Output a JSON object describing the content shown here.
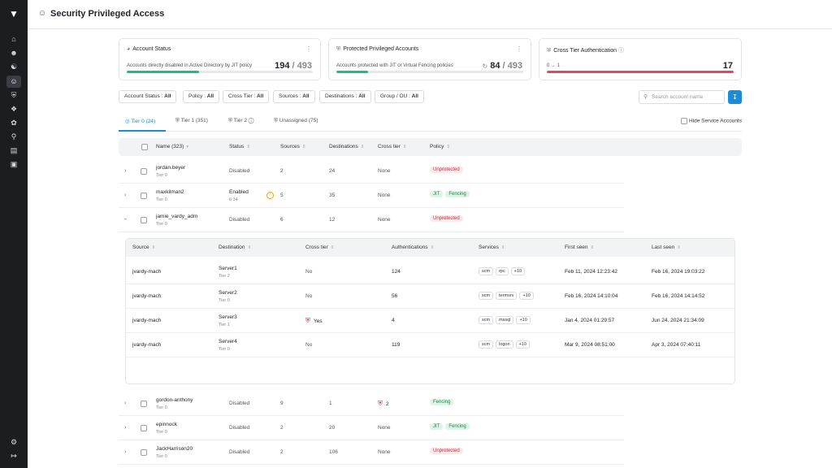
{
  "app": {
    "title": "Security Privileged Access"
  },
  "sidebar": {
    "icons": [
      "logo-icon",
      "home-icon",
      "user-icon",
      "users-group-icon",
      "account-icon",
      "shield-icon",
      "network-icon",
      "fingerprint-icon",
      "key-icon",
      "document-icon",
      "id-card-icon",
      "settings-icon",
      "logout-icon"
    ]
  },
  "cards": [
    {
      "title": "Account Status",
      "subtitle": "Accounts directly disabled in Active Directory by JIT policy",
      "value": "194",
      "total": "/ 493",
      "progress": 0.39,
      "color": "#1fbf75"
    },
    {
      "title": "Protected Privileged Accounts",
      "subtitle": "Accounts protected with JIT or Virtual Fencing policies",
      "value": "84",
      "total": "/ 493",
      "progress": 0.17,
      "color": "#1fbf75"
    },
    {
      "title": "Cross Tier Authentication",
      "subtitle": "0 → 1",
      "value": "17",
      "total": "",
      "progress": 1.0,
      "color": "#e8455a"
    }
  ],
  "filters": [
    {
      "label": "Account Status :",
      "value": "All"
    },
    {
      "label": "Policy :",
      "value": "All"
    },
    {
      "label": "Cross Tier :",
      "value": "All"
    },
    {
      "label": "Sources :",
      "value": "All"
    },
    {
      "label": "Destinations :",
      "value": "All"
    },
    {
      "label": "Group / OU :",
      "value": "All"
    }
  ],
  "search": {
    "placeholder": "Search account name"
  },
  "tabs": [
    {
      "label": "Tier 0 (24)"
    },
    {
      "label": "Tier 1 (351)"
    },
    {
      "label": "Tier 2"
    },
    {
      "label": "Unassigned (75)"
    }
  ],
  "hide_service_accounts": "Hide Service Accounts",
  "table": {
    "headers": [
      "Name (323)",
      "Status",
      "Sources",
      "Destinations",
      "Cross tier",
      "Policy"
    ],
    "rows": [
      {
        "name": "jordan.beyer",
        "tier": "Tier 0",
        "status": "Disabled",
        "status_sub": "",
        "sources": "2",
        "destinations": "24",
        "cross_tier": "None",
        "policies": [
          "Unprotected"
        ]
      },
      {
        "name": "maxkilman2",
        "tier": "Tier 0",
        "status": "Enabled",
        "status_sub": "6:34",
        "sources": "5",
        "destinations": "35",
        "cross_tier": "None",
        "policies": [
          "JIT",
          "Fencing"
        ]
      },
      {
        "name": "jamie_vardy_adm",
        "tier": "Tier 0",
        "status": "Disabled",
        "status_sub": "",
        "sources": "6",
        "destinations": "12",
        "cross_tier": "None",
        "policies": [
          "Unprotected"
        ]
      },
      {
        "name": "gordon-anthony",
        "tier": "Tier 0",
        "status": "Disabled",
        "status_sub": "",
        "sources": "9",
        "destinations": "1",
        "cross_tier": "2",
        "policies": [
          "Fencing"
        ]
      },
      {
        "name": "epinnock",
        "tier": "Tier 0",
        "status": "Disabled",
        "status_sub": "",
        "sources": "2",
        "destinations": "20",
        "cross_tier": "None",
        "policies": [
          "JIT",
          "Fencing"
        ]
      },
      {
        "name": "JackHarrison20",
        "tier": "Tier 0",
        "status": "Disabled",
        "status_sub": "",
        "sources": "2",
        "destinations": "106",
        "cross_tier": "None",
        "policies": [
          "Unprotected"
        ]
      }
    ]
  },
  "subtable": {
    "headers": [
      "Source",
      "Destination",
      "Cross tier",
      "Authentications",
      "Services",
      "First seen",
      "Last seen"
    ],
    "rows": [
      {
        "source": "jvardy-mach",
        "dest": "Server1",
        "dest_tier": "Tier 2",
        "cross": "No",
        "auth": "124",
        "services": [
          "scm",
          "rpc",
          "+10"
        ],
        "first": "Feb 11, 2024 12:23:42",
        "last": "Feb 16, 2024 19:03:22"
      },
      {
        "source": "jvardy-mach",
        "dest": "Server2",
        "dest_tier": "Tier 0",
        "cross": "No",
        "auth": "56",
        "services": [
          "scm",
          "termsrv",
          "+10"
        ],
        "first": "Feb 16, 2024 14:10:04",
        "last": "Feb 16, 2024 14:14:52"
      },
      {
        "source": "jvardy-mach",
        "dest": "Server3",
        "dest_tier": "Tier 1",
        "cross": "Yes",
        "auth": "4",
        "services": [
          "scm",
          "mssql",
          "+10"
        ],
        "first": "Jan 4, 2024 01:29:57",
        "last": "Jun 24, 2024 21:34:09"
      },
      {
        "source": "jvardy-mach",
        "dest": "Server4",
        "dest_tier": "Tier 0",
        "cross": "No",
        "auth": "119",
        "services": [
          "scm",
          "logon",
          "+10"
        ],
        "first": "Mar 9, 2024 08:51:00",
        "last": "Apr 3, 2024 07:40:11"
      }
    ]
  }
}
